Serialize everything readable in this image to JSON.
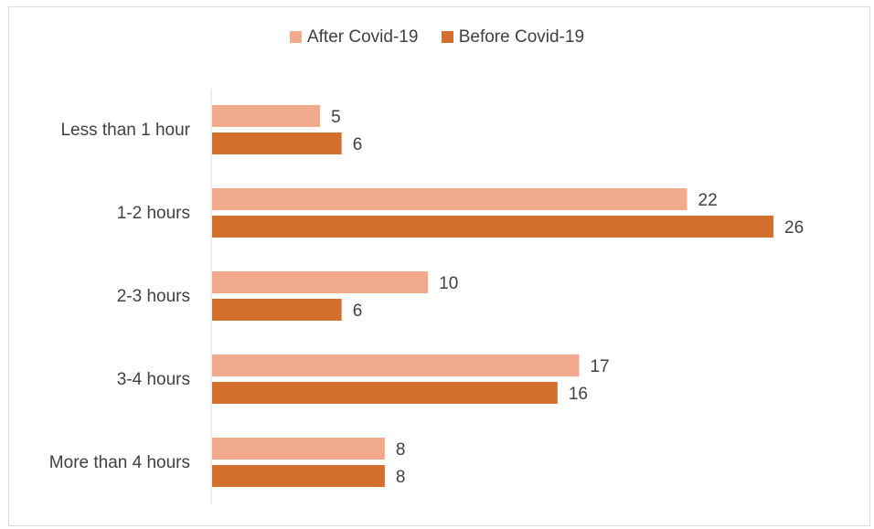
{
  "chart_data": {
    "type": "bar",
    "orientation": "horizontal",
    "categories": [
      "Less than 1 hour",
      "1-2 hours",
      "2-3 hours",
      "3-4 hours",
      "More than 4 hours"
    ],
    "series": [
      {
        "name": "After Covid-19",
        "values": [
          5,
          22,
          10,
          17,
          8
        ],
        "color": "#f2aa8c"
      },
      {
        "name": "Before Covid-19",
        "values": [
          6,
          26,
          6,
          16,
          8
        ],
        "color": "#d4702d"
      }
    ],
    "xlim": [
      0,
      26
    ],
    "grid": false,
    "legend_position": "top"
  }
}
